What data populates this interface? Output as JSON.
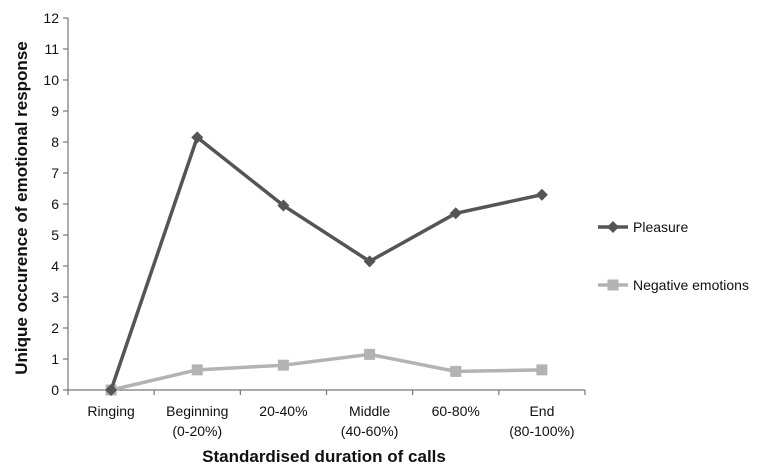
{
  "chart_data": {
    "type": "line",
    "title": "",
    "xlabel": "Standardised duration of calls",
    "ylabel": "Unique occurence of emotional response",
    "ylim": [
      0,
      12
    ],
    "yticks": [
      0,
      1,
      2,
      3,
      4,
      5,
      6,
      7,
      8,
      9,
      10,
      11,
      12
    ],
    "grid": false,
    "legend_position": "right",
    "categories": [
      [
        "Ringing"
      ],
      [
        "Beginning",
        "(0-20%)"
      ],
      [
        "20-40%"
      ],
      [
        "Middle",
        "(40-60%)"
      ],
      [
        "60-80%"
      ],
      [
        "End",
        "(80-100%)"
      ]
    ],
    "series": [
      {
        "name": "Pleasure",
        "values": [
          0,
          8.15,
          5.95,
          4.15,
          5.7,
          6.3
        ],
        "color": "#555555",
        "marker": "diamond"
      },
      {
        "name": "Negative emotions",
        "values": [
          0,
          0.65,
          0.8,
          1.15,
          0.6,
          0.65
        ],
        "color": "#b3b3b3",
        "marker": "square"
      }
    ]
  }
}
